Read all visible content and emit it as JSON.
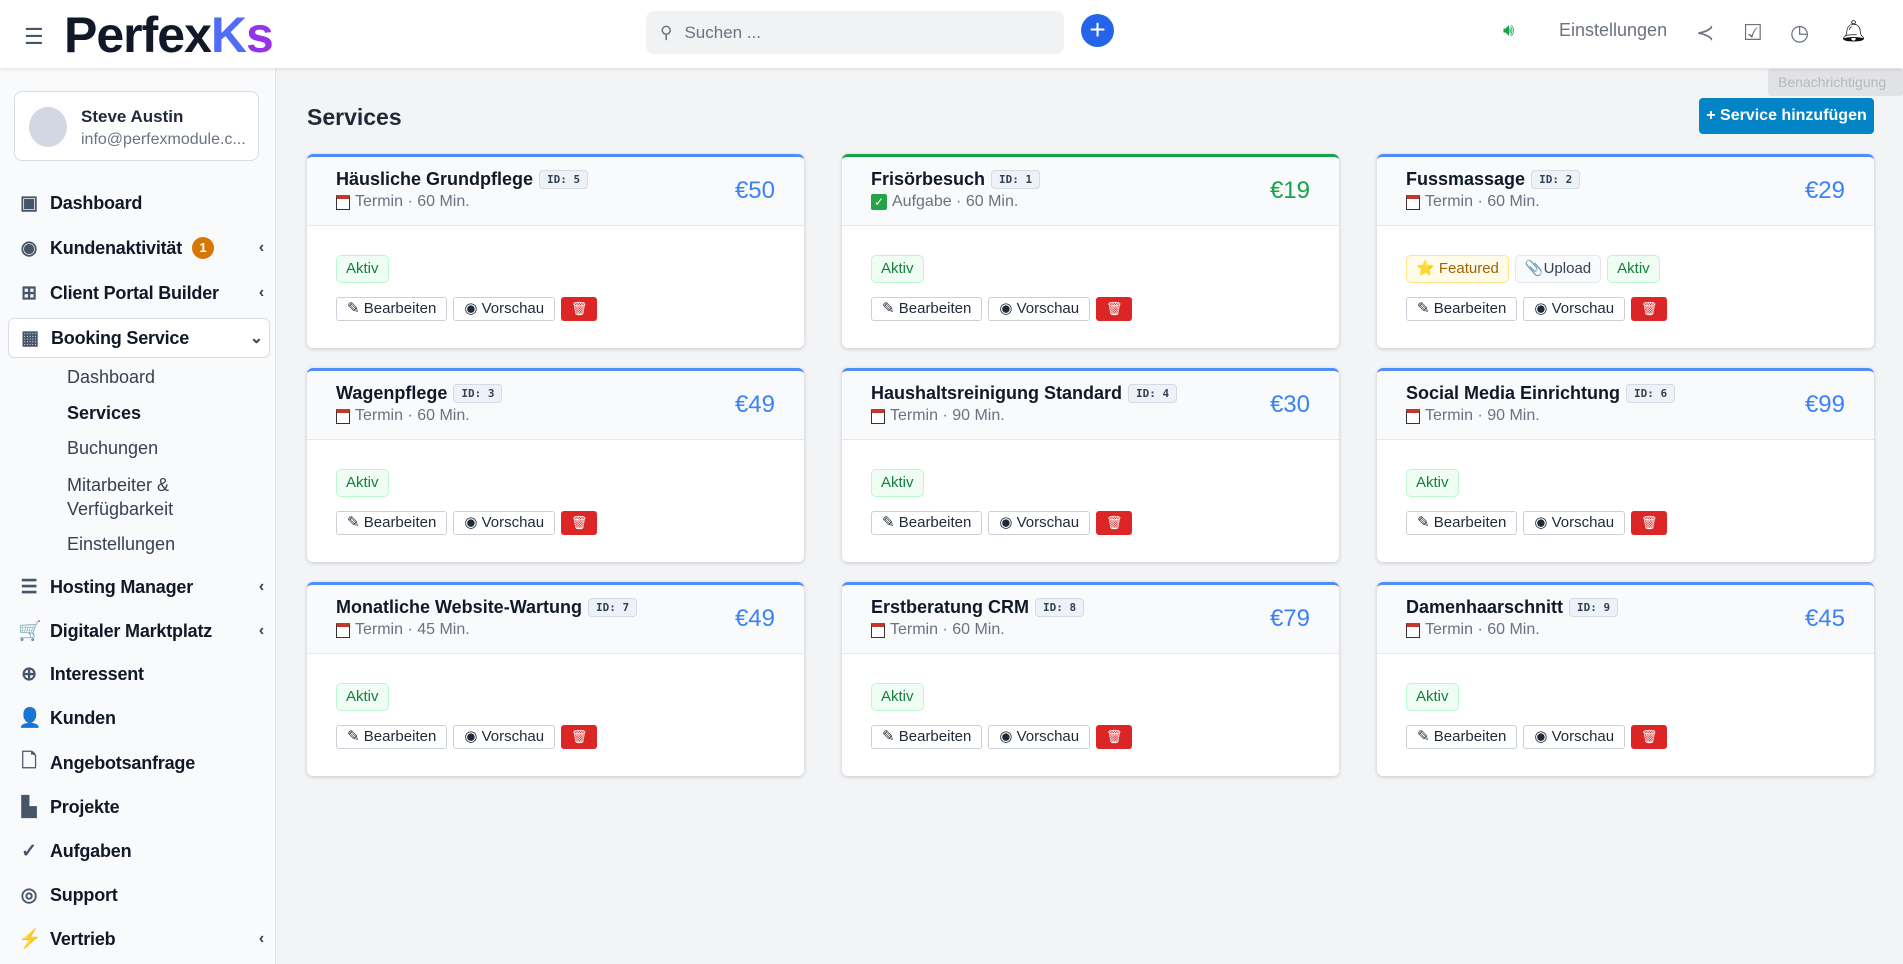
{
  "header": {
    "logo": "Perfex",
    "logo_k": "K",
    "logo_s": "s",
    "search_placeholder": "Suchen ...",
    "settings": "Einstellungen",
    "tooltip": "Benachrichtigung"
  },
  "user": {
    "name": "Steve Austin",
    "email": "info@perfexmodule.c..."
  },
  "sidebar": {
    "items": [
      {
        "label": "Dashboard",
        "icon": "dashboard-icon",
        "glyph": "▣"
      },
      {
        "label": "Kundenaktivität",
        "icon": "eye-icon",
        "glyph": "◉",
        "badge": "1",
        "chevron": "‹"
      },
      {
        "label": "Client Portal Builder",
        "icon": "grid-icon",
        "glyph": "⊞",
        "chevron": "‹"
      },
      {
        "label": "Booking Service",
        "icon": "calendar-icon",
        "glyph": "▦",
        "chevron": "⌄"
      },
      {
        "label": "Hosting Manager",
        "icon": "server-icon",
        "glyph": "☰",
        "chevron": "‹"
      },
      {
        "label": "Digitaler Marktplatz",
        "icon": "cart-icon",
        "glyph": "🛒",
        "chevron": "‹"
      },
      {
        "label": "Interessent",
        "icon": "crosshair-icon",
        "glyph": "⊕"
      },
      {
        "label": "Kunden",
        "icon": "user-icon",
        "glyph": "👤"
      },
      {
        "label": "Angebotsanfrage",
        "icon": "file-icon",
        "glyph": "🗋"
      },
      {
        "label": "Projekte",
        "icon": "chart-icon",
        "glyph": "▙"
      },
      {
        "label": "Aufgaben",
        "icon": "check-circle-icon",
        "glyph": "✓"
      },
      {
        "label": "Support",
        "icon": "lifebuoy-icon",
        "glyph": "◎"
      },
      {
        "label": "Vertrieb",
        "icon": "bolt-icon",
        "glyph": "⚡",
        "chevron": "‹"
      }
    ],
    "sub": [
      "Dashboard",
      "Services",
      "Buchungen",
      "Mitarbeiter &",
      "Verfügbarkeit",
      "Einstellungen"
    ]
  },
  "main": {
    "title": "Services",
    "add_button": "+ Service hinzufügen",
    "labels": {
      "edit": "Bearbeiten",
      "preview": "Vorschau"
    },
    "services": [
      {
        "name": "Häusliche Grundpflege",
        "id": "ID: 5",
        "meta": "Termin · 60 Min.",
        "price": "€50",
        "type": "termin",
        "tags": [
          "Aktiv"
        ]
      },
      {
        "name": "Frisörbesuch",
        "id": "ID: 1",
        "meta": "Aufgabe · 60 Min.",
        "price": "€19",
        "type": "aufgabe",
        "tags": [
          "Aktiv"
        ]
      },
      {
        "name": "Fussmassage",
        "id": "ID: 2",
        "meta": "Termin · 60 Min.",
        "price": "€29",
        "type": "termin",
        "tags": [
          "Featured",
          "Upload",
          "Aktiv"
        ]
      },
      {
        "name": "Wagenpflege",
        "id": "ID: 3",
        "meta": "Termin · 60 Min.",
        "price": "€49",
        "type": "termin",
        "tags": [
          "Aktiv"
        ]
      },
      {
        "name": "Haushaltsreinigung Standard",
        "id": "ID: 4",
        "meta": "Termin · 90 Min.",
        "price": "€30",
        "type": "termin",
        "tags": [
          "Aktiv"
        ]
      },
      {
        "name": "Social Media Einrichtung",
        "id": "ID: 6",
        "meta": "Termin · 90 Min.",
        "price": "€99",
        "type": "termin",
        "tags": [
          "Aktiv"
        ]
      },
      {
        "name": "Monatliche Website-Wartung",
        "id": "ID: 7",
        "meta": "Termin · 45 Min.",
        "price": "€49",
        "type": "termin",
        "tags": [
          "Aktiv"
        ]
      },
      {
        "name": "Erstberatung CRM",
        "id": "ID: 8",
        "meta": "Termin · 60 Min.",
        "price": "€79",
        "type": "termin",
        "tags": [
          "Aktiv"
        ]
      },
      {
        "name": "Damenhaarschnitt",
        "id": "ID: 9",
        "meta": "Termin · 60 Min.",
        "price": "€45",
        "type": "termin",
        "tags": [
          "Aktiv"
        ]
      }
    ]
  },
  "colors": {
    "accent": "#3b82f6",
    "green": "#16a34a",
    "danger": "#dc2626",
    "primary": "#0284c7"
  }
}
